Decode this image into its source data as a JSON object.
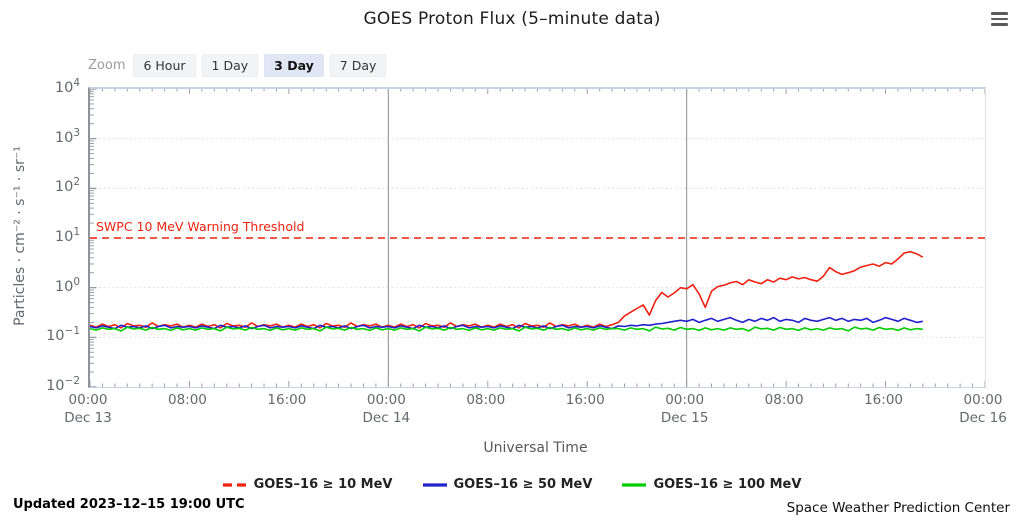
{
  "header": {
    "title": "GOES Proton Flux (5–minute data)"
  },
  "menu": {
    "icon": "hamburger-icon"
  },
  "toolbar": {
    "zoom_label": "Zoom",
    "buttons": [
      {
        "label": "6 Hour",
        "selected": false
      },
      {
        "label": "1 Day",
        "selected": false
      },
      {
        "label": "3 Day",
        "selected": true
      },
      {
        "label": "7 Day",
        "selected": false
      }
    ]
  },
  "footer": {
    "updated": "Updated 2023–12–15 19:00 UTC",
    "source": "Space Weather Prediction Center"
  },
  "chart_data": {
    "type": "line",
    "title": "GOES Proton Flux (5–minute data)",
    "xlabel": "Universal Time",
    "ylabel": "Particles · cm⁻² · s⁻¹ · sr⁻¹",
    "x_axis": {
      "unit": "hours from Dec 13 00:00 UTC",
      "min": 0,
      "max": 72,
      "minor_tick_hours": 1,
      "major_tick_hours": 8
    },
    "x_ticks": [
      {
        "hour": 0,
        "time": "00:00",
        "date": "Dec 13"
      },
      {
        "hour": 8,
        "time": "08:00",
        "date": ""
      },
      {
        "hour": 16,
        "time": "16:00",
        "date": ""
      },
      {
        "hour": 24,
        "time": "00:00",
        "date": "Dec 14"
      },
      {
        "hour": 32,
        "time": "08:00",
        "date": ""
      },
      {
        "hour": 40,
        "time": "16:00",
        "date": ""
      },
      {
        "hour": 48,
        "time": "00:00",
        "date": "Dec 15"
      },
      {
        "hour": 56,
        "time": "08:00",
        "date": ""
      },
      {
        "hour": 64,
        "time": "16:00",
        "date": ""
      },
      {
        "hour": 72,
        "time": "00:00",
        "date": "Dec 16"
      }
    ],
    "day_gridlines_hours": [
      24,
      48
    ],
    "y_axis": {
      "scale": "log",
      "min_exp": -2,
      "max_exp": 4
    },
    "y_ticks": [
      {
        "exp": 4,
        "label": "4"
      },
      {
        "exp": 3,
        "label": "3"
      },
      {
        "exp": 2,
        "label": "2"
      },
      {
        "exp": 1,
        "label": "1"
      },
      {
        "exp": 0,
        "label": "0"
      },
      {
        "exp": -1,
        "label": "−1"
      },
      {
        "exp": -2,
        "label": "−2"
      }
    ],
    "grid_exps": [
      3,
      2,
      1,
      0,
      -1
    ],
    "threshold": {
      "value": 10,
      "label": "SWPC 10 MeV Warning Threshold",
      "color": "#ee2211",
      "style": "dashed"
    },
    "series": [
      {
        "name": "GOES–16 ≥ 10 MeV",
        "color": "#ee2211",
        "legend_dash": true,
        "start": 0,
        "step": 0.5,
        "values": [
          0.175,
          0.16,
          0.185,
          0.165,
          0.18,
          0.155,
          0.19,
          0.17,
          0.175,
          0.16,
          0.195,
          0.165,
          0.18,
          0.17,
          0.185,
          0.16,
          0.175,
          0.16,
          0.185,
          0.165,
          0.18,
          0.155,
          0.19,
          0.17,
          0.175,
          0.16,
          0.195,
          0.165,
          0.18,
          0.17,
          0.185,
          0.16,
          0.175,
          0.16,
          0.185,
          0.165,
          0.18,
          0.155,
          0.19,
          0.17,
          0.175,
          0.16,
          0.195,
          0.165,
          0.18,
          0.17,
          0.185,
          0.16,
          0.175,
          0.16,
          0.185,
          0.165,
          0.18,
          0.155,
          0.19,
          0.17,
          0.175,
          0.16,
          0.195,
          0.165,
          0.18,
          0.17,
          0.185,
          0.16,
          0.175,
          0.16,
          0.185,
          0.165,
          0.18,
          0.155,
          0.19,
          0.17,
          0.175,
          0.16,
          0.195,
          0.165,
          0.18,
          0.17,
          0.185,
          0.16,
          0.175,
          0.16,
          0.185,
          0.165,
          0.18,
          0.2,
          0.27,
          0.32,
          0.38,
          0.45,
          0.28,
          0.55,
          0.8,
          0.65,
          0.78,
          1.0,
          0.95,
          1.15,
          0.75,
          0.4,
          0.85,
          1.05,
          1.12,
          1.25,
          1.33,
          1.15,
          1.45,
          1.3,
          1.2,
          1.45,
          1.3,
          1.55,
          1.45,
          1.65,
          1.5,
          1.6,
          1.45,
          1.35,
          1.7,
          2.55,
          2.1,
          1.85,
          2.0,
          2.2,
          2.6,
          2.8,
          3.0,
          2.7,
          3.2,
          3.0,
          3.8,
          5.0,
          5.3,
          4.8,
          4.1
        ]
      },
      {
        "name": "GOES–16 ≥ 50 MeV",
        "color": "#2222cc",
        "legend_dash": false,
        "start": 0,
        "step": 0.5,
        "values": [
          0.165,
          0.155,
          0.17,
          0.16,
          0.15,
          0.175,
          0.16,
          0.165,
          0.155,
          0.17,
          0.15,
          0.165,
          0.175,
          0.155,
          0.165,
          0.16,
          0.165,
          0.155,
          0.17,
          0.16,
          0.15,
          0.175,
          0.16,
          0.165,
          0.155,
          0.17,
          0.15,
          0.165,
          0.175,
          0.155,
          0.165,
          0.16,
          0.165,
          0.155,
          0.17,
          0.16,
          0.15,
          0.175,
          0.16,
          0.165,
          0.155,
          0.17,
          0.15,
          0.165,
          0.175,
          0.155,
          0.165,
          0.16,
          0.165,
          0.155,
          0.17,
          0.16,
          0.15,
          0.175,
          0.16,
          0.165,
          0.155,
          0.17,
          0.15,
          0.165,
          0.175,
          0.155,
          0.165,
          0.16,
          0.165,
          0.155,
          0.17,
          0.16,
          0.15,
          0.175,
          0.16,
          0.165,
          0.155,
          0.17,
          0.15,
          0.165,
          0.175,
          0.155,
          0.165,
          0.16,
          0.165,
          0.155,
          0.17,
          0.16,
          0.15,
          0.17,
          0.165,
          0.175,
          0.17,
          0.18,
          0.175,
          0.185,
          0.19,
          0.2,
          0.21,
          0.22,
          0.21,
          0.23,
          0.2,
          0.22,
          0.24,
          0.21,
          0.23,
          0.25,
          0.22,
          0.2,
          0.23,
          0.21,
          0.24,
          0.22,
          0.25,
          0.21,
          0.23,
          0.22,
          0.2,
          0.24,
          0.22,
          0.21,
          0.23,
          0.25,
          0.22,
          0.24,
          0.21,
          0.23,
          0.22,
          0.24,
          0.2,
          0.22,
          0.25,
          0.23,
          0.21,
          0.24,
          0.22,
          0.2,
          0.21
        ]
      },
      {
        "name": "GOES–16 ≥ 100 MeV",
        "color": "#00cc00",
        "legend_dash": false,
        "start": 0,
        "step": 0.5,
        "values": [
          0.15,
          0.14,
          0.155,
          0.145,
          0.15,
          0.135,
          0.16,
          0.148,
          0.152,
          0.14,
          0.158,
          0.145,
          0.15,
          0.138,
          0.155,
          0.142,
          0.15,
          0.14,
          0.155,
          0.145,
          0.15,
          0.135,
          0.16,
          0.148,
          0.152,
          0.14,
          0.158,
          0.145,
          0.15,
          0.138,
          0.155,
          0.142,
          0.15,
          0.14,
          0.155,
          0.145,
          0.15,
          0.135,
          0.16,
          0.148,
          0.152,
          0.14,
          0.158,
          0.145,
          0.15,
          0.138,
          0.155,
          0.142,
          0.15,
          0.14,
          0.155,
          0.145,
          0.15,
          0.135,
          0.16,
          0.148,
          0.152,
          0.14,
          0.158,
          0.145,
          0.15,
          0.138,
          0.155,
          0.142,
          0.15,
          0.14,
          0.155,
          0.145,
          0.15,
          0.135,
          0.16,
          0.148,
          0.152,
          0.14,
          0.158,
          0.145,
          0.15,
          0.138,
          0.155,
          0.142,
          0.15,
          0.14,
          0.155,
          0.145,
          0.15,
          0.15,
          0.14,
          0.155,
          0.145,
          0.15,
          0.135,
          0.16,
          0.148,
          0.152,
          0.14,
          0.158,
          0.145,
          0.15,
          0.138,
          0.155,
          0.142,
          0.15,
          0.14,
          0.155,
          0.145,
          0.15,
          0.135,
          0.16,
          0.148,
          0.152,
          0.14,
          0.158,
          0.145,
          0.15,
          0.138,
          0.155,
          0.142,
          0.15,
          0.14,
          0.155,
          0.145,
          0.15,
          0.135,
          0.16,
          0.148,
          0.152,
          0.14,
          0.158,
          0.145,
          0.15,
          0.138,
          0.155,
          0.142,
          0.15,
          0.145
        ]
      }
    ],
    "layout_hints": {
      "grid": "dotted horizontal per decade",
      "legend_position": "bottom-center",
      "day_separators": "solid vertical"
    }
  }
}
